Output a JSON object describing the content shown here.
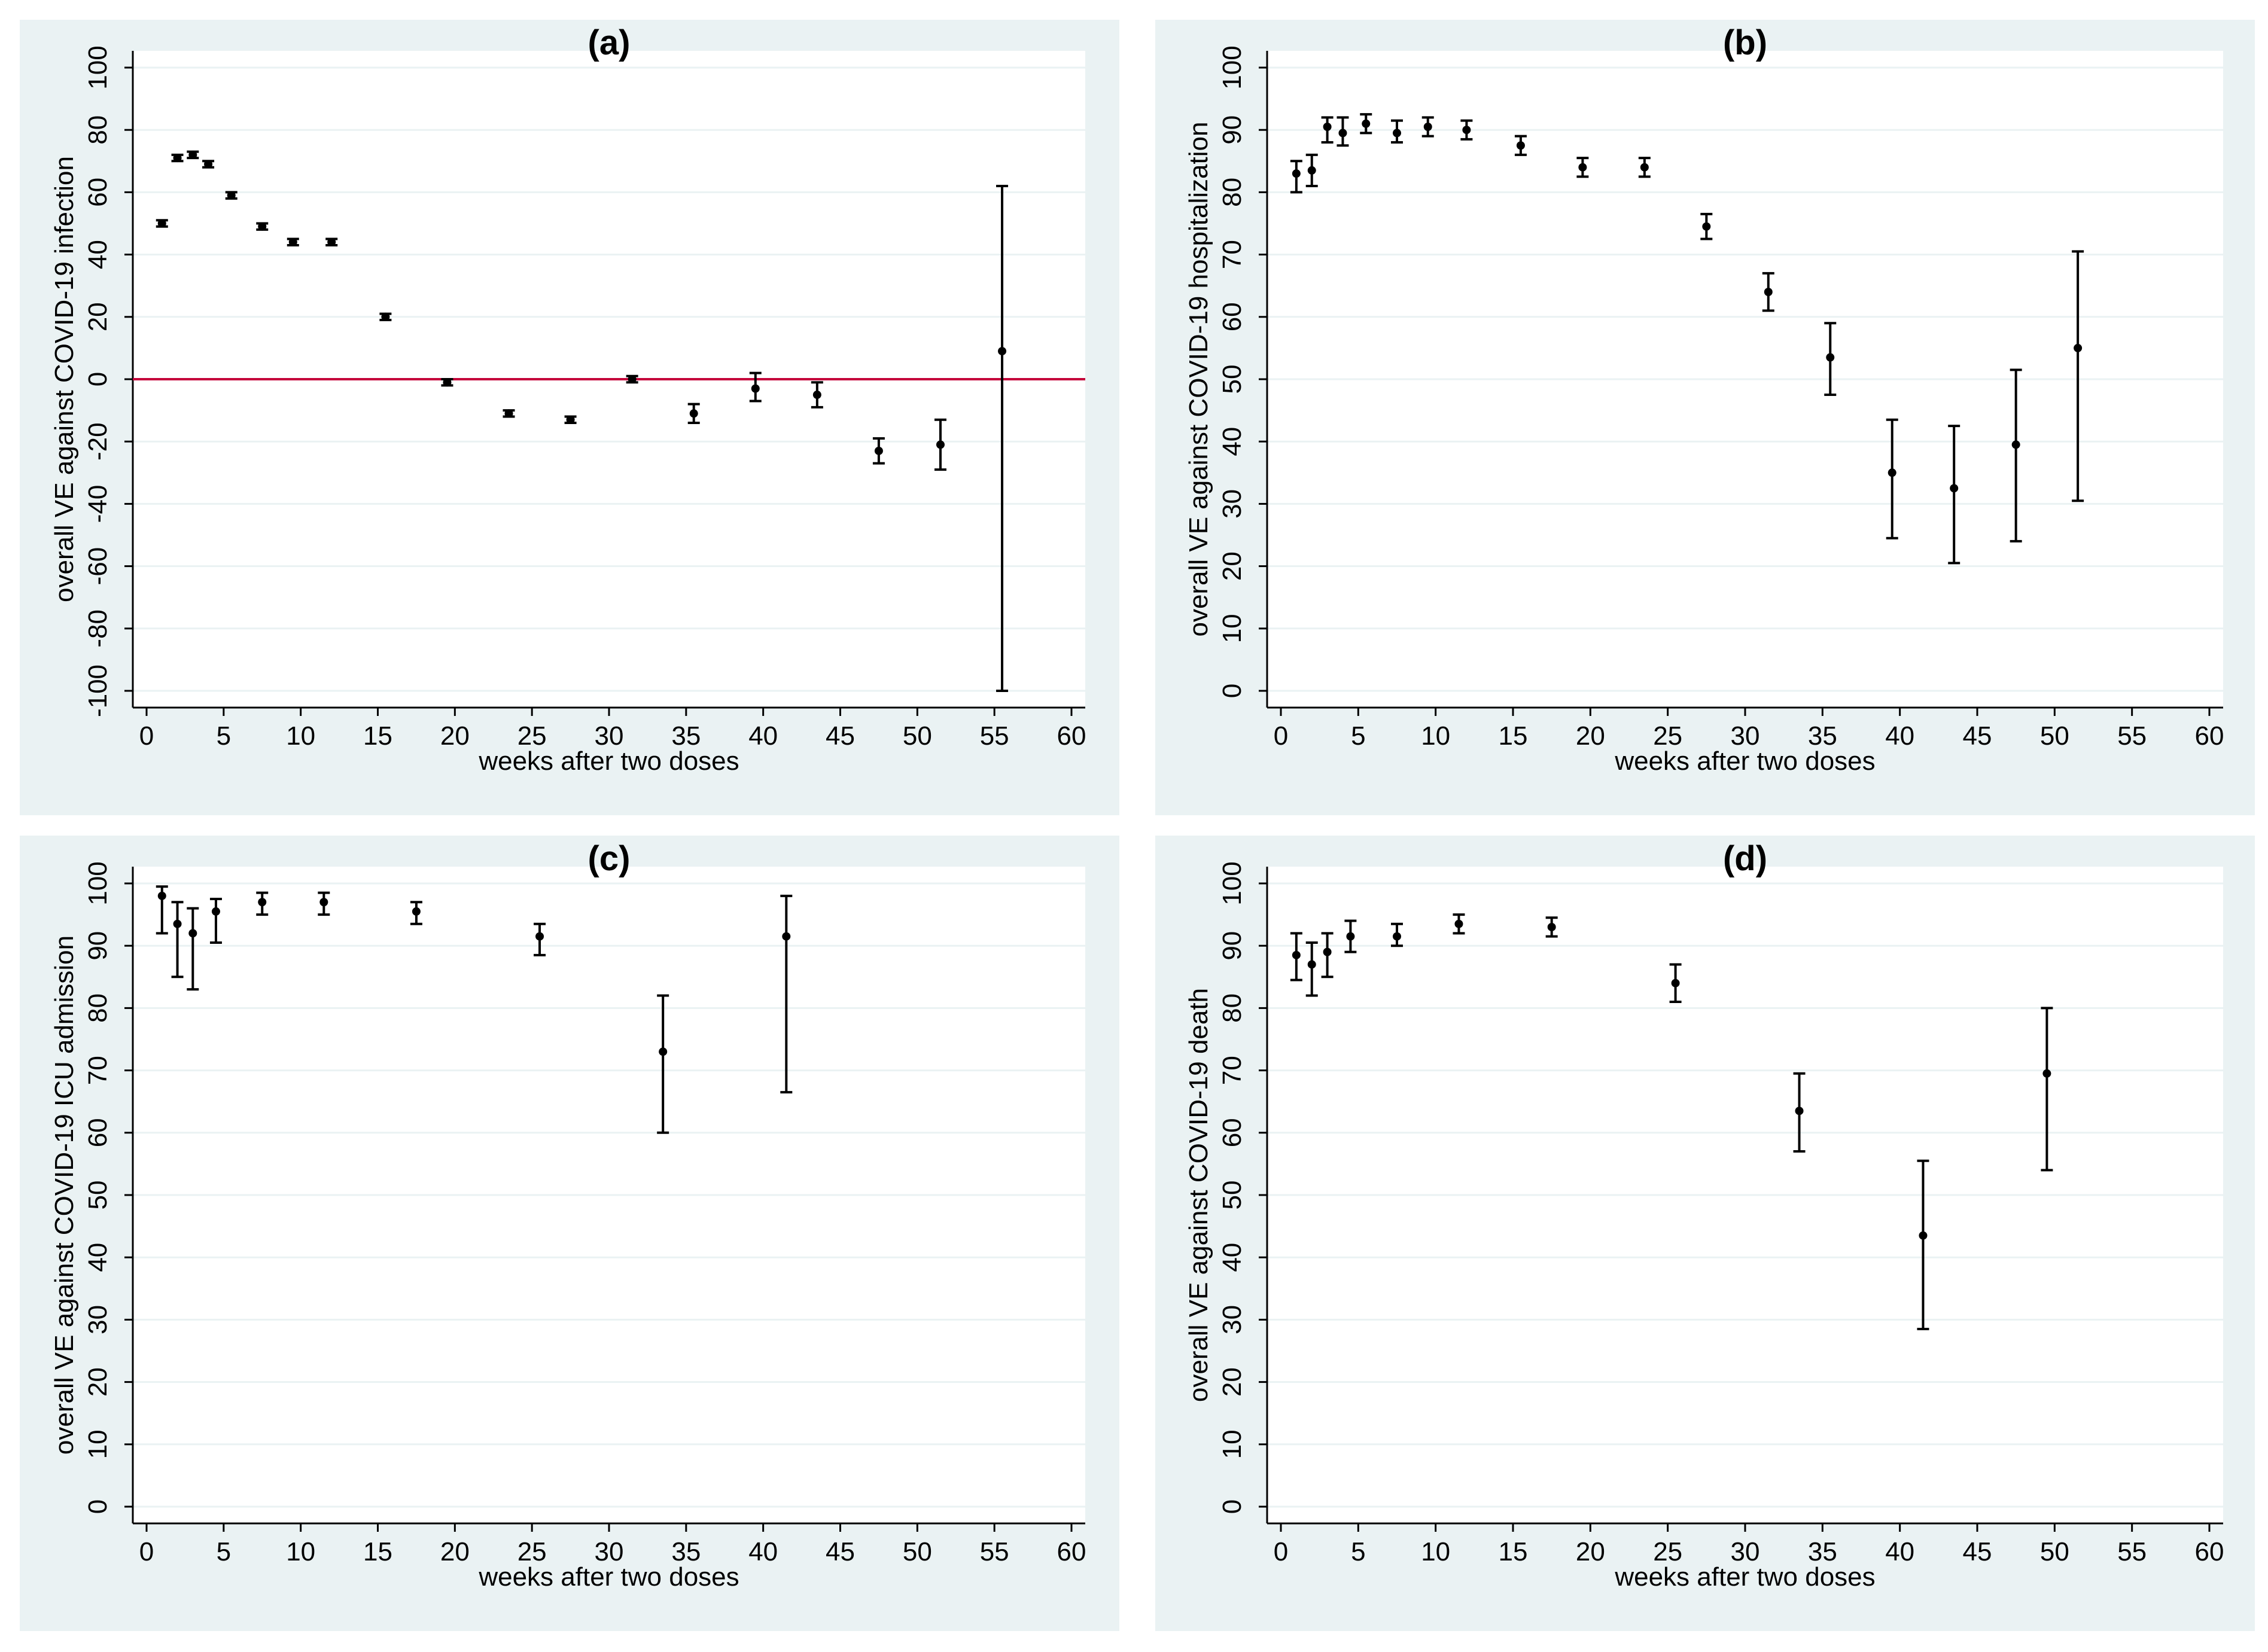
{
  "figure": {
    "panels": [
      {
        "title": "(a)",
        "xlabel": "weeks after two doses",
        "ylabel": "overall VE against COVID-19 infection",
        "xlim": [
          0,
          60
        ],
        "ylim": [
          -100,
          100
        ],
        "xticks": [
          0,
          5,
          10,
          15,
          20,
          25,
          30,
          35,
          40,
          45,
          50,
          55,
          60
        ],
        "yticks": [
          -100,
          -80,
          -60,
          -40,
          -20,
          0,
          20,
          40,
          60,
          80,
          100
        ],
        "ref_line": 0
      },
      {
        "title": "(b)",
        "xlabel": "weeks after two doses",
        "ylabel": "overall VE against COVID-19 hospitalization",
        "xlim": [
          0,
          60
        ],
        "ylim": [
          0,
          100
        ],
        "xticks": [
          0,
          5,
          10,
          15,
          20,
          25,
          30,
          35,
          40,
          45,
          50,
          55,
          60
        ],
        "yticks": [
          0,
          10,
          20,
          30,
          40,
          50,
          60,
          70,
          80,
          90,
          100
        ]
      },
      {
        "title": "(c)",
        "xlabel": "weeks after two doses",
        "ylabel": "overall VE against COVID-19 ICU admission",
        "xlim": [
          0,
          60
        ],
        "ylim": [
          0,
          100
        ],
        "xticks": [
          0,
          5,
          10,
          15,
          20,
          25,
          30,
          35,
          40,
          45,
          50,
          55,
          60
        ],
        "yticks": [
          0,
          10,
          20,
          30,
          40,
          50,
          60,
          70,
          80,
          90,
          100
        ]
      },
      {
        "title": "(d)",
        "xlabel": "weeks after two doses",
        "ylabel": "overall VE against COVID-19 death",
        "xlim": [
          0,
          60
        ],
        "ylim": [
          0,
          100
        ],
        "xticks": [
          0,
          5,
          10,
          15,
          20,
          25,
          30,
          35,
          40,
          45,
          50,
          55,
          60
        ],
        "yticks": [
          0,
          10,
          20,
          30,
          40,
          50,
          60,
          70,
          80,
          90,
          100
        ]
      }
    ]
  },
  "chart_data": [
    {
      "type": "scatter",
      "title": "(a)",
      "xlabel": "weeks after two doses",
      "ylabel": "overall VE against COVID-19 infection",
      "xlim": [
        0,
        60
      ],
      "ylim": [
        -100,
        100
      ],
      "reference_line": {
        "y": 0,
        "color": "#c4003a"
      },
      "points": [
        {
          "x": 1,
          "y": 50,
          "lo": 49,
          "hi": 51
        },
        {
          "x": 2,
          "y": 71,
          "lo": 70,
          "hi": 72
        },
        {
          "x": 3,
          "y": 72,
          "lo": 71,
          "hi": 73
        },
        {
          "x": 4,
          "y": 69,
          "lo": 68,
          "hi": 70
        },
        {
          "x": 5.5,
          "y": 59,
          "lo": 58,
          "hi": 60
        },
        {
          "x": 7.5,
          "y": 49,
          "lo": 48,
          "hi": 50
        },
        {
          "x": 9.5,
          "y": 44,
          "lo": 43,
          "hi": 45
        },
        {
          "x": 12,
          "y": 44,
          "lo": 43,
          "hi": 45
        },
        {
          "x": 15.5,
          "y": 20,
          "lo": 19,
          "hi": 21
        },
        {
          "x": 19.5,
          "y": -1,
          "lo": -2,
          "hi": 0
        },
        {
          "x": 23.5,
          "y": -11,
          "lo": -12,
          "hi": -10
        },
        {
          "x": 27.5,
          "y": -13,
          "lo": -14,
          "hi": -12
        },
        {
          "x": 31.5,
          "y": 0,
          "lo": -1,
          "hi": 1
        },
        {
          "x": 35.5,
          "y": -11,
          "lo": -14,
          "hi": -8
        },
        {
          "x": 39.5,
          "y": -3,
          "lo": -7,
          "hi": 2
        },
        {
          "x": 43.5,
          "y": -5,
          "lo": -9,
          "hi": -1
        },
        {
          "x": 47.5,
          "y": -23,
          "lo": -27,
          "hi": -19
        },
        {
          "x": 51.5,
          "y": -21,
          "lo": -29,
          "hi": -13
        },
        {
          "x": 55.5,
          "y": 9,
          "lo": -100,
          "hi": 62
        }
      ]
    },
    {
      "type": "scatter",
      "title": "(b)",
      "xlabel": "weeks after two doses",
      "ylabel": "overall VE against COVID-19 hospitalization",
      "xlim": [
        0,
        60
      ],
      "ylim": [
        0,
        100
      ],
      "points": [
        {
          "x": 1,
          "y": 83,
          "lo": 80,
          "hi": 85
        },
        {
          "x": 2,
          "y": 83.5,
          "lo": 81,
          "hi": 86
        },
        {
          "x": 3,
          "y": 90.5,
          "lo": 88,
          "hi": 92
        },
        {
          "x": 4,
          "y": 89.5,
          "lo": 87.5,
          "hi": 92
        },
        {
          "x": 5.5,
          "y": 91,
          "lo": 89.5,
          "hi": 92.5
        },
        {
          "x": 7.5,
          "y": 89.5,
          "lo": 88,
          "hi": 91.5
        },
        {
          "x": 9.5,
          "y": 90.5,
          "lo": 89,
          "hi": 92
        },
        {
          "x": 12,
          "y": 90,
          "lo": 88.5,
          "hi": 91.5
        },
        {
          "x": 15.5,
          "y": 87.5,
          "lo": 86,
          "hi": 89
        },
        {
          "x": 19.5,
          "y": 84,
          "lo": 82.5,
          "hi": 85.5
        },
        {
          "x": 23.5,
          "y": 84,
          "lo": 82.5,
          "hi": 85.5
        },
        {
          "x": 27.5,
          "y": 74.5,
          "lo": 72.5,
          "hi": 76.5
        },
        {
          "x": 31.5,
          "y": 64,
          "lo": 61,
          "hi": 67
        },
        {
          "x": 35.5,
          "y": 53.5,
          "lo": 47.5,
          "hi": 59
        },
        {
          "x": 39.5,
          "y": 35,
          "lo": 24.5,
          "hi": 43.5
        },
        {
          "x": 43.5,
          "y": 32.5,
          "lo": 20.5,
          "hi": 42.5
        },
        {
          "x": 47.5,
          "y": 39.5,
          "lo": 24,
          "hi": 51.5
        },
        {
          "x": 51.5,
          "y": 55,
          "lo": 30.5,
          "hi": 70.5
        }
      ]
    },
    {
      "type": "scatter",
      "title": "(c)",
      "xlabel": "weeks after two doses",
      "ylabel": "overall VE against COVID-19 ICU admission",
      "xlim": [
        0,
        60
      ],
      "ylim": [
        0,
        100
      ],
      "points": [
        {
          "x": 1,
          "y": 98,
          "lo": 92,
          "hi": 99.5
        },
        {
          "x": 2,
          "y": 93.5,
          "lo": 85,
          "hi": 97
        },
        {
          "x": 3,
          "y": 92,
          "lo": 83,
          "hi": 96
        },
        {
          "x": 4.5,
          "y": 95.5,
          "lo": 90.5,
          "hi": 97.5
        },
        {
          "x": 7.5,
          "y": 97,
          "lo": 95,
          "hi": 98.5
        },
        {
          "x": 11.5,
          "y": 97,
          "lo": 95,
          "hi": 98.5
        },
        {
          "x": 17.5,
          "y": 95.5,
          "lo": 93.5,
          "hi": 97
        },
        {
          "x": 25.5,
          "y": 91.5,
          "lo": 88.5,
          "hi": 93.5
        },
        {
          "x": 33.5,
          "y": 73,
          "lo": 60,
          "hi": 82
        },
        {
          "x": 41.5,
          "y": 91.5,
          "lo": 66.5,
          "hi": 98
        }
      ]
    },
    {
      "type": "scatter",
      "title": "(d)",
      "xlabel": "weeks after two doses",
      "ylabel": "overall VE against COVID-19 death",
      "xlim": [
        0,
        60
      ],
      "ylim": [
        0,
        100
      ],
      "points": [
        {
          "x": 1,
          "y": 88.5,
          "lo": 84.5,
          "hi": 92
        },
        {
          "x": 2,
          "y": 87,
          "lo": 82,
          "hi": 90.5
        },
        {
          "x": 3,
          "y": 89,
          "lo": 85,
          "hi": 92
        },
        {
          "x": 4.5,
          "y": 91.5,
          "lo": 89,
          "hi": 94
        },
        {
          "x": 7.5,
          "y": 91.5,
          "lo": 90,
          "hi": 93.5
        },
        {
          "x": 11.5,
          "y": 93.5,
          "lo": 92,
          "hi": 95
        },
        {
          "x": 17.5,
          "y": 93,
          "lo": 91.5,
          "hi": 94.5
        },
        {
          "x": 25.5,
          "y": 84,
          "lo": 81,
          "hi": 87
        },
        {
          "x": 33.5,
          "y": 63.5,
          "lo": 57,
          "hi": 69.5
        },
        {
          "x": 41.5,
          "y": 43.5,
          "lo": 28.5,
          "hi": 55.5
        },
        {
          "x": 49.5,
          "y": 69.5,
          "lo": 54,
          "hi": 80
        }
      ]
    }
  ]
}
